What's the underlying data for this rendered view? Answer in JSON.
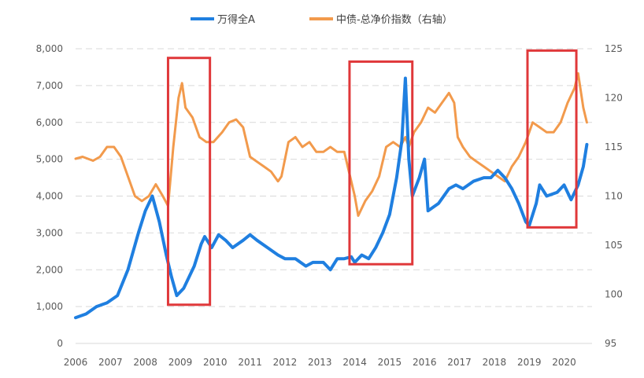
{
  "chart_data": {
    "type": "line",
    "legend_position": "top-center",
    "grid": "horizontal-dashed",
    "x_range": [
      2006.0,
      2020.7
    ],
    "x_tick_labels": [
      "2006",
      "2007",
      "2008",
      "2009",
      "2010",
      "2011",
      "2012",
      "2013",
      "2014",
      "2015",
      "2016",
      "2017",
      "2018",
      "2019",
      "2020"
    ],
    "y_left": {
      "ylim": [
        0,
        8000
      ],
      "ticks": [
        "0",
        "1,000",
        "2,000",
        "3,000",
        "4,000",
        "5,000",
        "6,000",
        "7,000",
        "8,000"
      ]
    },
    "y_right": {
      "ylim": [
        95,
        125
      ],
      "ticks": [
        "95",
        "100",
        "105",
        "110",
        "115",
        "120",
        "125"
      ]
    },
    "series": [
      {
        "name": "万得全A",
        "axis": "left",
        "color": "#1f7fe0",
        "points": [
          [
            2006.0,
            700
          ],
          [
            2006.3,
            800
          ],
          [
            2006.6,
            1000
          ],
          [
            2006.9,
            1100
          ],
          [
            2007.2,
            1300
          ],
          [
            2007.5,
            2000
          ],
          [
            2007.8,
            3000
          ],
          [
            2008.0,
            3600
          ],
          [
            2008.2,
            4000
          ],
          [
            2008.4,
            3300
          ],
          [
            2008.6,
            2400
          ],
          [
            2008.75,
            1800
          ],
          [
            2008.9,
            1300
          ],
          [
            2009.1,
            1500
          ],
          [
            2009.4,
            2100
          ],
          [
            2009.6,
            2700
          ],
          [
            2009.7,
            2900
          ],
          [
            2009.9,
            2600
          ],
          [
            2010.1,
            2950
          ],
          [
            2010.3,
            2800
          ],
          [
            2010.5,
            2600
          ],
          [
            2010.8,
            2800
          ],
          [
            2011.0,
            2950
          ],
          [
            2011.2,
            2800
          ],
          [
            2011.5,
            2600
          ],
          [
            2011.8,
            2400
          ],
          [
            2012.0,
            2300
          ],
          [
            2012.3,
            2300
          ],
          [
            2012.6,
            2100
          ],
          [
            2012.8,
            2200
          ],
          [
            2013.1,
            2200
          ],
          [
            2013.3,
            2000
          ],
          [
            2013.5,
            2300
          ],
          [
            2013.7,
            2300
          ],
          [
            2013.9,
            2350
          ],
          [
            2014.0,
            2200
          ],
          [
            2014.2,
            2400
          ],
          [
            2014.4,
            2300
          ],
          [
            2014.6,
            2600
          ],
          [
            2014.8,
            3000
          ],
          [
            2015.0,
            3500
          ],
          [
            2015.2,
            4500
          ],
          [
            2015.35,
            5500
          ],
          [
            2015.45,
            7200
          ],
          [
            2015.55,
            5000
          ],
          [
            2015.65,
            4000
          ],
          [
            2015.85,
            4500
          ],
          [
            2016.0,
            5000
          ],
          [
            2016.1,
            3600
          ],
          [
            2016.4,
            3800
          ],
          [
            2016.7,
            4200
          ],
          [
            2016.9,
            4300
          ],
          [
            2017.1,
            4200
          ],
          [
            2017.4,
            4400
          ],
          [
            2017.7,
            4500
          ],
          [
            2017.9,
            4500
          ],
          [
            2018.1,
            4700
          ],
          [
            2018.3,
            4500
          ],
          [
            2018.5,
            4200
          ],
          [
            2018.7,
            3800
          ],
          [
            2018.9,
            3300
          ],
          [
            2019.0,
            3200
          ],
          [
            2019.2,
            3800
          ],
          [
            2019.3,
            4300
          ],
          [
            2019.5,
            4000
          ],
          [
            2019.8,
            4100
          ],
          [
            2020.0,
            4300
          ],
          [
            2020.2,
            3900
          ],
          [
            2020.4,
            4300
          ],
          [
            2020.55,
            4800
          ],
          [
            2020.65,
            5400
          ]
        ]
      },
      {
        "name": "中债-总净价指数（右轴）",
        "axis": "right",
        "color": "#f29a4c",
        "points": [
          [
            2006.0,
            113.8
          ],
          [
            2006.2,
            114.0
          ],
          [
            2006.5,
            113.6
          ],
          [
            2006.7,
            114.0
          ],
          [
            2006.9,
            115.0
          ],
          [
            2007.1,
            115.0
          ],
          [
            2007.3,
            114.0
          ],
          [
            2007.5,
            112.0
          ],
          [
            2007.7,
            110.0
          ],
          [
            2007.9,
            109.5
          ],
          [
            2008.1,
            110.0
          ],
          [
            2008.3,
            111.2
          ],
          [
            2008.5,
            110.0
          ],
          [
            2008.65,
            109.0
          ],
          [
            2008.8,
            115.0
          ],
          [
            2008.95,
            120.0
          ],
          [
            2009.05,
            121.5
          ],
          [
            2009.15,
            119.0
          ],
          [
            2009.35,
            118.0
          ],
          [
            2009.55,
            116.0
          ],
          [
            2009.75,
            115.5
          ],
          [
            2009.95,
            115.5
          ],
          [
            2010.2,
            116.5
          ],
          [
            2010.4,
            117.5
          ],
          [
            2010.6,
            117.8
          ],
          [
            2010.8,
            117.0
          ],
          [
            2011.0,
            114.0
          ],
          [
            2011.2,
            113.5
          ],
          [
            2011.4,
            113.0
          ],
          [
            2011.6,
            112.5
          ],
          [
            2011.8,
            111.5
          ],
          [
            2011.9,
            112.0
          ],
          [
            2012.1,
            115.5
          ],
          [
            2012.3,
            116.0
          ],
          [
            2012.5,
            115.0
          ],
          [
            2012.7,
            115.5
          ],
          [
            2012.9,
            114.5
          ],
          [
            2013.1,
            114.5
          ],
          [
            2013.3,
            115.0
          ],
          [
            2013.5,
            114.5
          ],
          [
            2013.7,
            114.5
          ],
          [
            2013.8,
            113.0
          ],
          [
            2014.0,
            110.0
          ],
          [
            2014.1,
            108.0
          ],
          [
            2014.3,
            109.5
          ],
          [
            2014.5,
            110.5
          ],
          [
            2014.7,
            112.0
          ],
          [
            2014.9,
            115.0
          ],
          [
            2015.1,
            115.5
          ],
          [
            2015.3,
            115.0
          ],
          [
            2015.45,
            116.0
          ],
          [
            2015.55,
            115.0
          ],
          [
            2015.7,
            116.5
          ],
          [
            2015.9,
            117.5
          ],
          [
            2016.1,
            119.0
          ],
          [
            2016.3,
            118.5
          ],
          [
            2016.5,
            119.5
          ],
          [
            2016.7,
            120.5
          ],
          [
            2016.85,
            119.5
          ],
          [
            2016.95,
            116.0
          ],
          [
            2017.1,
            115.0
          ],
          [
            2017.3,
            114.0
          ],
          [
            2017.5,
            113.5
          ],
          [
            2017.7,
            113.0
          ],
          [
            2017.9,
            112.5
          ],
          [
            2018.1,
            112.0
          ],
          [
            2018.3,
            111.5
          ],
          [
            2018.5,
            113.0
          ],
          [
            2018.7,
            114.0
          ],
          [
            2018.9,
            115.5
          ],
          [
            2019.1,
            117.5
          ],
          [
            2019.3,
            117.0
          ],
          [
            2019.5,
            116.5
          ],
          [
            2019.7,
            116.5
          ],
          [
            2019.9,
            117.5
          ],
          [
            2020.1,
            119.5
          ],
          [
            2020.3,
            121.0
          ],
          [
            2020.4,
            122.5
          ],
          [
            2020.55,
            119.0
          ],
          [
            2020.65,
            117.5
          ]
        ]
      }
    ],
    "highlight_boxes": [
      {
        "x": [
          2008.65,
          2009.85
        ],
        "y_left": [
          1050,
          7750
        ],
        "color": "#e0383a"
      },
      {
        "x": [
          2013.85,
          2015.65
        ],
        "y_left": [
          2150,
          7650
        ],
        "color": "#e0383a"
      },
      {
        "x": [
          2018.95,
          2020.35
        ],
        "y_left": [
          3150,
          7950
        ],
        "color": "#e0383a"
      }
    ]
  }
}
